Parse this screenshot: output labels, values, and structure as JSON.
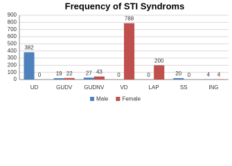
{
  "chart_data": {
    "type": "bar",
    "title": "Frequency of STI Syndroms",
    "categories": [
      "UD",
      "GUDV",
      "GUDNV",
      "VD",
      "LAP",
      "SS",
      "ING"
    ],
    "series": [
      {
        "name": "Male",
        "color": "#4f81bd",
        "values": [
          382,
          19,
          27,
          0,
          0,
          20,
          4
        ]
      },
      {
        "name": "Female",
        "color": "#c0504d",
        "values": [
          0,
          22,
          43,
          788,
          200,
          0,
          4
        ]
      }
    ],
    "ylim": [
      0,
      900
    ],
    "yticks": [
      0,
      100,
      200,
      300,
      400,
      500,
      600,
      700,
      800,
      900
    ],
    "grid": true,
    "legend": "bottom",
    "data_labels": true
  }
}
